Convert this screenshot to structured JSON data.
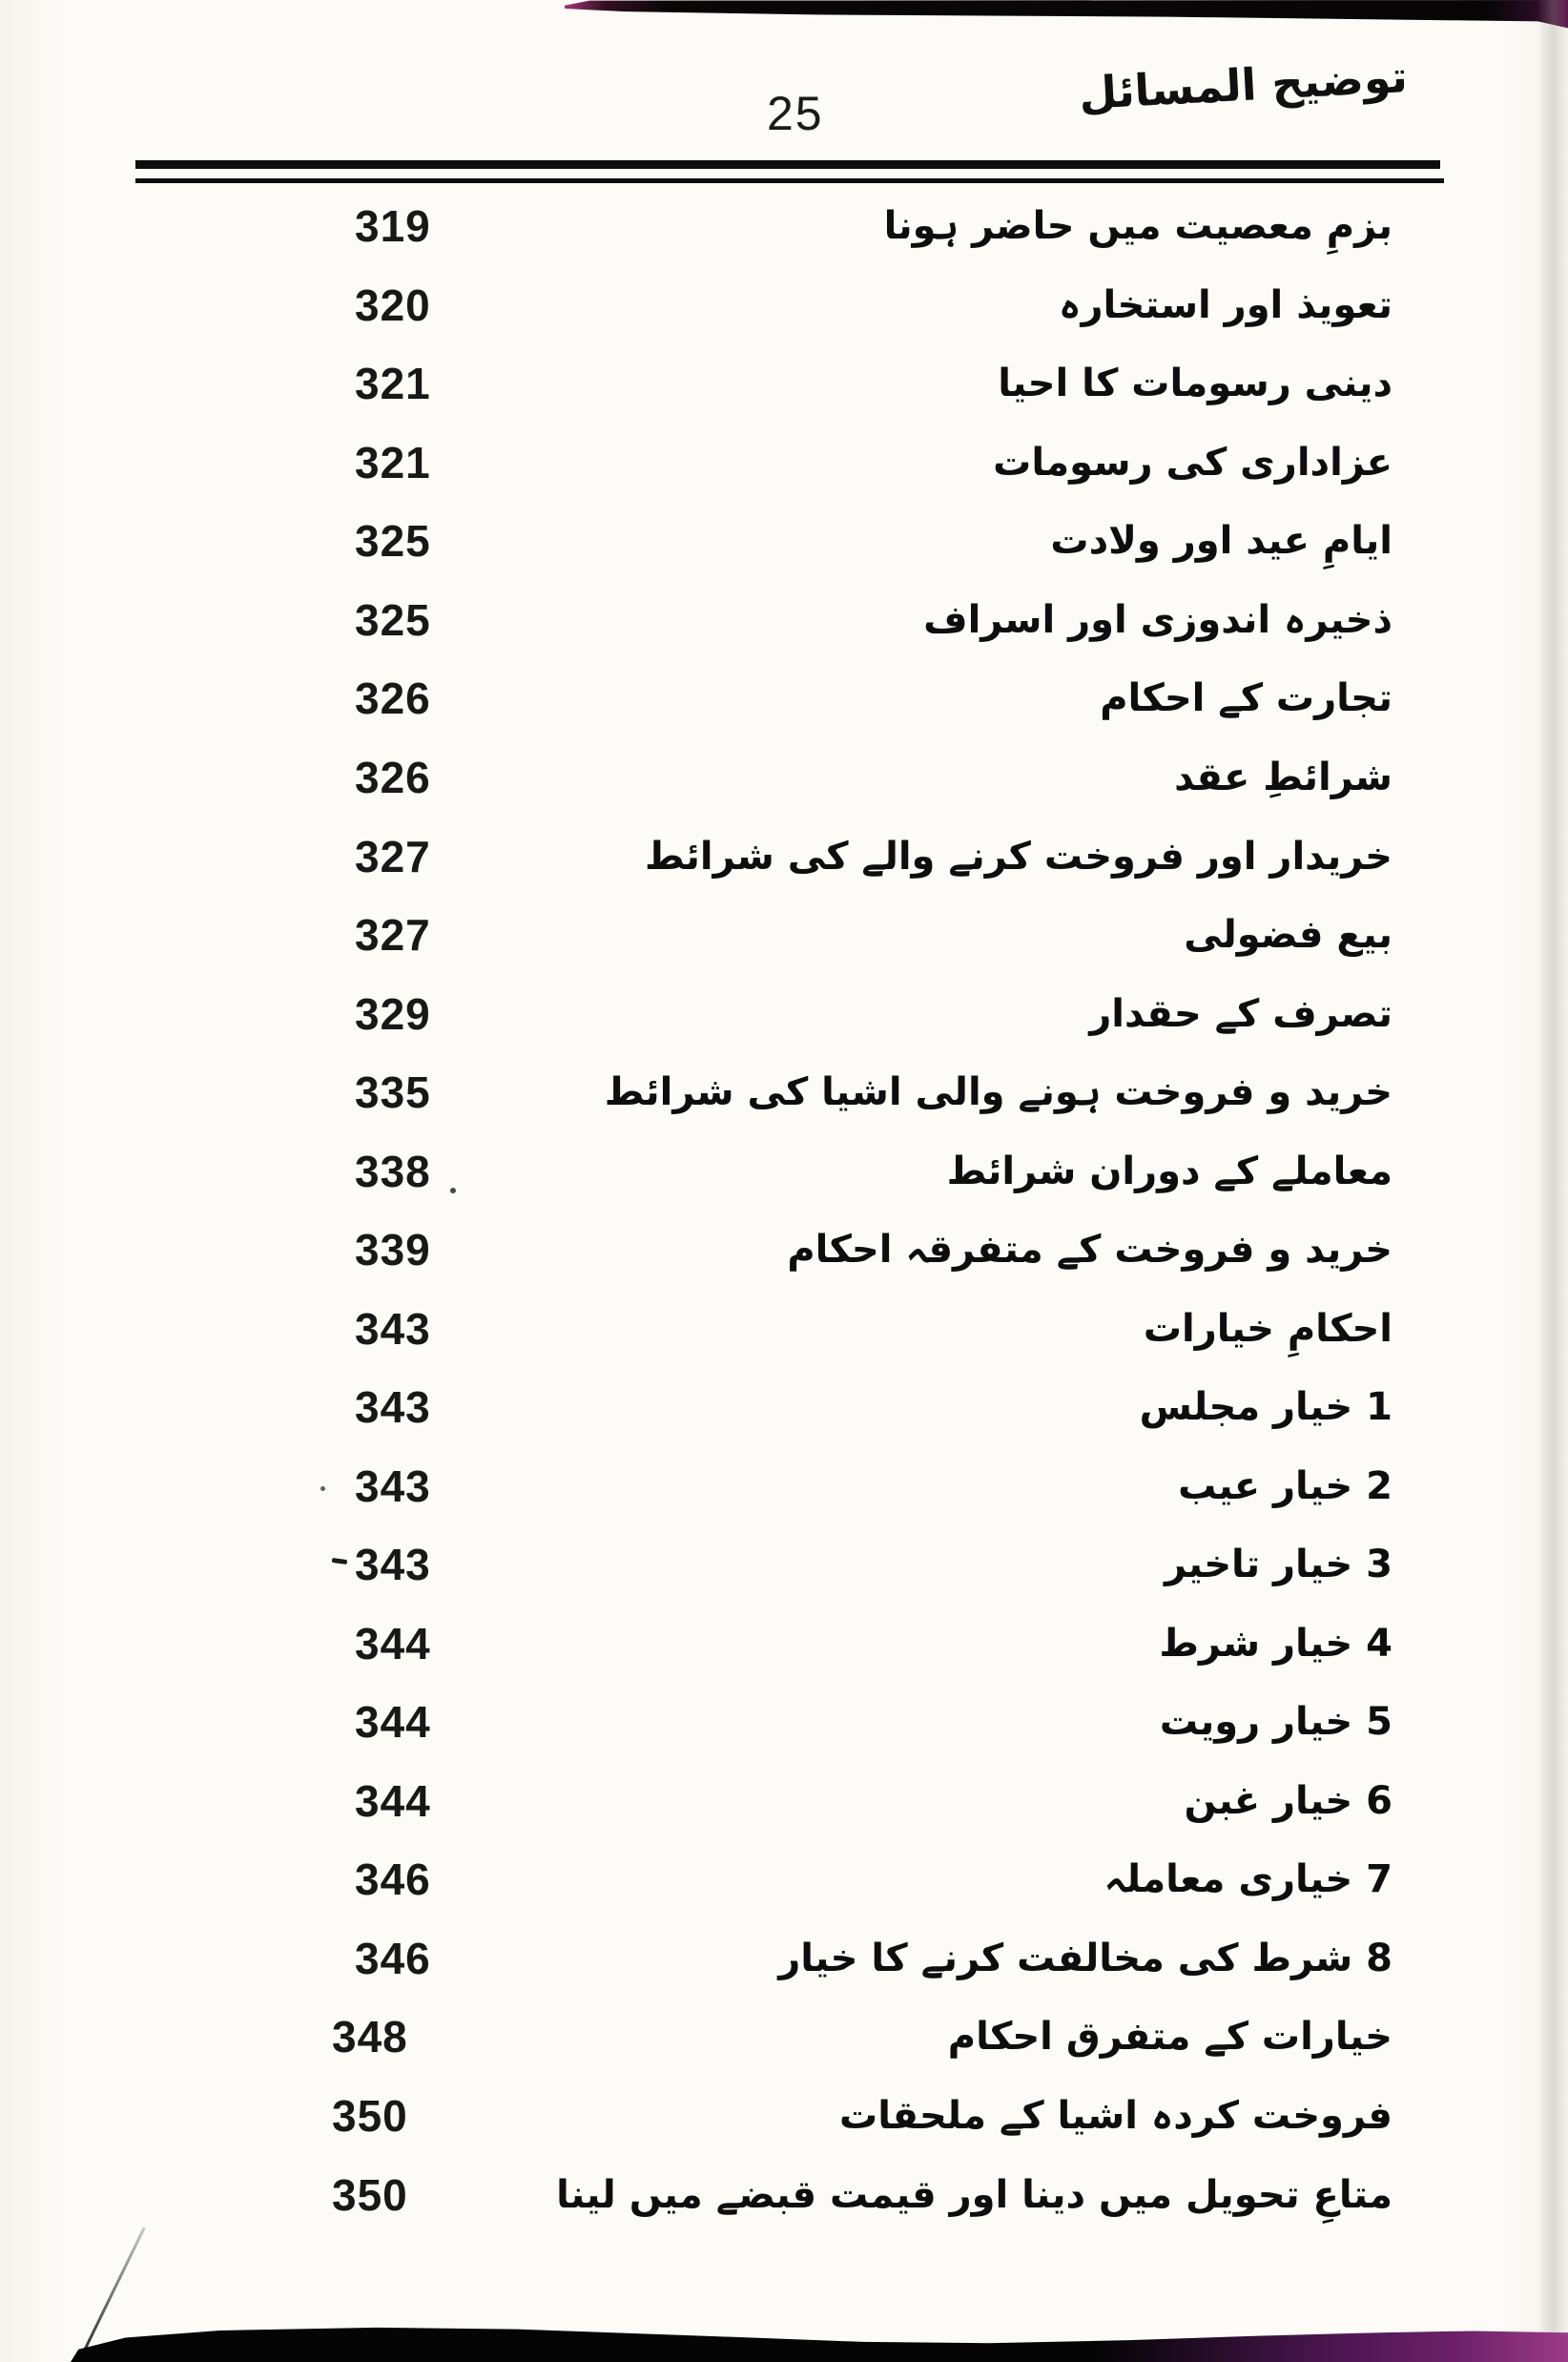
{
  "header": {
    "page_number": "25",
    "book_title": "توضیح المسائل"
  },
  "colors": {
    "paper": "#fcfbf7",
    "ink": "#121212",
    "scan_edge_magenta": "#9c3a86"
  },
  "toc": {
    "entries": [
      {
        "label": "بزمِ معصیت میں حاضر ہونا",
        "page": "319"
      },
      {
        "label": "تعویذ اور استخارہ",
        "page": "320"
      },
      {
        "label": "دینی رسومات کا احیا",
        "page": "321"
      },
      {
        "label": "عزاداری کی رسومات",
        "page": "321"
      },
      {
        "label": "ایامِ عید اور ولادت",
        "page": "325"
      },
      {
        "label": "ذخیرہ اندوزی اور اسراف",
        "page": "325"
      },
      {
        "label": "تجارت کے احکام",
        "page": "326"
      },
      {
        "label": "شرائطِ عقد",
        "page": "326"
      },
      {
        "label": "خریدار اور فروخت کرنے والے کی شرائط",
        "page": "327"
      },
      {
        "label": "بیع فضولی",
        "page": "327"
      },
      {
        "label": "تصرف کے حقدار",
        "page": "329"
      },
      {
        "label": "خرید و فروخت ہونے والی اشیا کی شرائط",
        "page": "335"
      },
      {
        "label": "معاملے کے دوران شرائط",
        "page": "338"
      },
      {
        "label": "خرید و فروخت کے متفرقہ احکام",
        "page": "339"
      },
      {
        "label": "احکامِ خیارات",
        "page": "343"
      },
      {
        "label": "1 خیار مجلس",
        "page": "343"
      },
      {
        "label": "2 خیار عیب",
        "page": "343"
      },
      {
        "label": "3 خیار تاخیر",
        "page": "343"
      },
      {
        "label": "4 خیار شرط",
        "page": "344"
      },
      {
        "label": "5 خیار رویت",
        "page": "344"
      },
      {
        "label": "6 خیار غبن",
        "page": "344"
      },
      {
        "label": "7 خیاری معاملہ",
        "page": "346"
      },
      {
        "label": "8 شرط کی مخالفت کرنے کا خیار",
        "page": "346"
      },
      {
        "label": "خیارات کے متفرق احکام",
        "page": "348"
      },
      {
        "label": "فروخت کردہ اشیا کے ملحقات",
        "page": "350"
      },
      {
        "label": "متاعِ تحویل میں دینا اور قیمت قبضے میں لینا",
        "page": "350"
      }
    ]
  }
}
